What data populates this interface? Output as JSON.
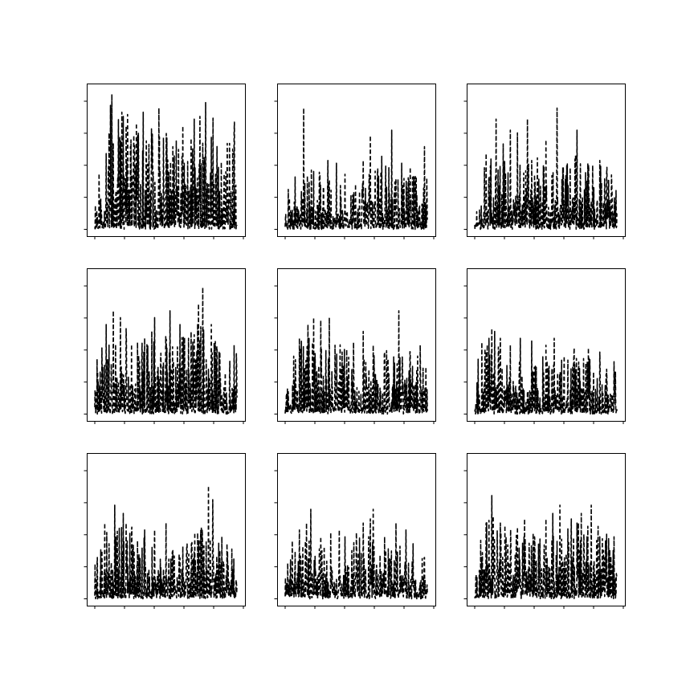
{
  "figure": {
    "rows": 3,
    "cols": 3,
    "background": "#ffffff",
    "line_color": "#000000",
    "line_style": "dashed"
  },
  "chart_data": [
    {
      "type": "line",
      "panel": "r1c1",
      "points": 500,
      "seed": 11,
      "envelope": [
        0.45,
        0.6,
        0.95,
        0.8,
        0.7,
        0.85,
        0.6,
        0.75,
        0.65,
        0.95,
        0.55,
        0.85
      ],
      "spikes": [
        [
          0.08,
          0.55
        ],
        [
          0.1,
          0.7
        ],
        [
          0.11,
          0.9
        ],
        [
          0.12,
          0.98
        ],
        [
          0.19,
          0.85
        ],
        [
          0.2,
          0.82
        ],
        [
          0.22,
          0.75
        ],
        [
          0.25,
          0.6
        ],
        [
          0.28,
          0.62
        ],
        [
          0.3,
          0.68
        ],
        [
          0.34,
          0.85
        ],
        [
          0.4,
          0.55
        ],
        [
          0.45,
          0.88
        ],
        [
          0.5,
          0.4
        ],
        [
          0.55,
          0.6
        ],
        [
          0.59,
          0.58
        ],
        [
          0.62,
          0.75
        ],
        [
          0.7,
          0.8
        ],
        [
          0.74,
          0.82
        ],
        [
          0.78,
          0.92
        ],
        [
          0.85,
          0.4
        ],
        [
          0.87,
          0.45
        ],
        [
          0.93,
          0.38
        ],
        [
          0.98,
          0.7
        ]
      ]
    },
    {
      "type": "line",
      "panel": "r1c2",
      "points": 500,
      "seed": 23,
      "envelope": [
        0.3,
        0.35,
        0.45,
        0.4,
        0.35,
        0.3,
        0.45,
        0.5,
        0.45,
        0.4,
        0.4,
        0.45
      ],
      "spikes": [
        [
          0.07,
          0.38
        ],
        [
          0.13,
          0.88
        ],
        [
          0.2,
          0.42
        ],
        [
          0.3,
          0.5
        ],
        [
          0.36,
          0.48
        ],
        [
          0.42,
          0.4
        ],
        [
          0.55,
          0.5
        ],
        [
          0.6,
          0.68
        ],
        [
          0.68,
          0.53
        ],
        [
          0.75,
          0.72
        ],
        [
          0.82,
          0.48
        ],
        [
          0.88,
          0.45
        ],
        [
          0.98,
          0.6
        ]
      ]
    },
    {
      "type": "line",
      "panel": "r1c3",
      "points": 500,
      "seed": 37,
      "envelope": [
        0.35,
        0.5,
        0.55,
        0.45,
        0.5,
        0.55,
        0.45,
        0.5,
        0.6,
        0.5,
        0.45,
        0.4
      ],
      "spikes": [
        [
          0.08,
          0.55
        ],
        [
          0.1,
          0.38
        ],
        [
          0.15,
          0.8
        ],
        [
          0.2,
          0.62
        ],
        [
          0.25,
          0.72
        ],
        [
          0.3,
          0.7
        ],
        [
          0.37,
          0.8
        ],
        [
          0.4,
          0.5
        ],
        [
          0.5,
          0.65
        ],
        [
          0.58,
          0.88
        ],
        [
          0.62,
          0.45
        ],
        [
          0.72,
          0.72
        ],
        [
          0.8,
          0.45
        ],
        [
          0.88,
          0.5
        ],
        [
          0.93,
          0.45
        ]
      ]
    },
    {
      "type": "line",
      "panel": "r2c1",
      "points": 500,
      "seed": 41,
      "envelope": [
        0.4,
        0.5,
        0.6,
        0.5,
        0.55,
        0.65,
        0.5,
        0.6,
        0.7,
        0.55,
        0.5,
        0.45
      ],
      "spikes": [
        [
          0.05,
          0.48
        ],
        [
          0.08,
          0.65
        ],
        [
          0.13,
          0.75
        ],
        [
          0.18,
          0.7
        ],
        [
          0.22,
          0.62
        ],
        [
          0.3,
          0.52
        ],
        [
          0.35,
          0.55
        ],
        [
          0.4,
          0.6
        ],
        [
          0.42,
          0.7
        ],
        [
          0.5,
          0.5
        ],
        [
          0.53,
          0.75
        ],
        [
          0.6,
          0.65
        ],
        [
          0.66,
          0.55
        ],
        [
          0.73,
          0.8
        ],
        [
          0.76,
          0.92
        ],
        [
          0.82,
          0.65
        ],
        [
          0.88,
          0.45
        ],
        [
          0.98,
          0.5
        ]
      ]
    },
    {
      "type": "line",
      "panel": "r2c2",
      "points": 500,
      "seed": 53,
      "envelope": [
        0.45,
        0.6,
        0.55,
        0.5,
        0.5,
        0.55,
        0.45,
        0.5,
        0.5,
        0.55,
        0.5,
        0.45
      ],
      "spikes": [
        [
          0.06,
          0.42
        ],
        [
          0.1,
          0.55
        ],
        [
          0.16,
          0.65
        ],
        [
          0.2,
          0.7
        ],
        [
          0.25,
          0.68
        ],
        [
          0.31,
          0.7
        ],
        [
          0.35,
          0.5
        ],
        [
          0.4,
          0.45
        ],
        [
          0.48,
          0.52
        ],
        [
          0.55,
          0.6
        ],
        [
          0.62,
          0.5
        ],
        [
          0.7,
          0.45
        ],
        [
          0.8,
          0.75
        ],
        [
          0.88,
          0.45
        ],
        [
          0.95,
          0.5
        ]
      ]
    },
    {
      "type": "line",
      "panel": "r2c3",
      "points": 500,
      "seed": 67,
      "envelope": [
        0.4,
        0.55,
        0.5,
        0.45,
        0.4,
        0.45,
        0.4,
        0.4,
        0.45,
        0.4,
        0.35,
        0.35
      ],
      "spikes": [
        [
          0.05,
          0.52
        ],
        [
          0.1,
          0.55
        ],
        [
          0.12,
          0.62
        ],
        [
          0.14,
          0.6
        ],
        [
          0.18,
          0.55
        ],
        [
          0.25,
          0.5
        ],
        [
          0.32,
          0.55
        ],
        [
          0.4,
          0.53
        ],
        [
          0.5,
          0.5
        ],
        [
          0.56,
          0.55
        ],
        [
          0.63,
          0.42
        ],
        [
          0.7,
          0.48
        ],
        [
          0.8,
          0.48
        ],
        [
          0.88,
          0.45
        ],
        [
          0.98,
          0.38
        ]
      ]
    },
    {
      "type": "line",
      "panel": "r3c1",
      "points": 500,
      "seed": 79,
      "envelope": [
        0.35,
        0.5,
        0.55,
        0.5,
        0.45,
        0.4,
        0.35,
        0.45,
        0.5,
        0.55,
        0.45,
        0.4
      ],
      "spikes": [
        [
          0.05,
          0.35
        ],
        [
          0.07,
          0.55
        ],
        [
          0.1,
          0.4
        ],
        [
          0.14,
          0.68
        ],
        [
          0.2,
          0.62
        ],
        [
          0.22,
          0.55
        ],
        [
          0.26,
          0.52
        ],
        [
          0.3,
          0.42
        ],
        [
          0.35,
          0.5
        ],
        [
          0.42,
          0.5
        ],
        [
          0.5,
          0.55
        ],
        [
          0.55,
          0.35
        ],
        [
          0.62,
          0.38
        ],
        [
          0.68,
          0.4
        ],
        [
          0.75,
          0.52
        ],
        [
          0.8,
          0.82
        ],
        [
          0.83,
          0.72
        ],
        [
          0.88,
          0.35
        ],
        [
          0.93,
          0.4
        ]
      ]
    },
    {
      "type": "line",
      "panel": "r3c2",
      "points": 500,
      "seed": 89,
      "envelope": [
        0.35,
        0.45,
        0.45,
        0.4,
        0.35,
        0.4,
        0.5,
        0.45,
        0.4,
        0.4,
        0.35,
        0.3
      ],
      "spikes": [
        [
          0.05,
          0.42
        ],
        [
          0.1,
          0.5
        ],
        [
          0.15,
          0.55
        ],
        [
          0.18,
          0.65
        ],
        [
          0.25,
          0.45
        ],
        [
          0.32,
          0.48
        ],
        [
          0.38,
          0.5
        ],
        [
          0.42,
          0.45
        ],
        [
          0.5,
          0.48
        ],
        [
          0.55,
          0.55
        ],
        [
          0.6,
          0.58
        ],
        [
          0.62,
          0.65
        ],
        [
          0.7,
          0.45
        ],
        [
          0.78,
          0.55
        ],
        [
          0.85,
          0.5
        ],
        [
          0.9,
          0.4
        ],
        [
          0.98,
          0.3
        ]
      ]
    },
    {
      "type": "line",
      "panel": "r3c3",
      "points": 500,
      "seed": 97,
      "envelope": [
        0.4,
        0.6,
        0.55,
        0.5,
        0.45,
        0.5,
        0.55,
        0.5,
        0.55,
        0.6,
        0.5,
        0.45
      ],
      "spikes": [
        [
          0.05,
          0.3
        ],
        [
          0.08,
          0.55
        ],
        [
          0.12,
          0.75
        ],
        [
          0.13,
          0.6
        ],
        [
          0.18,
          0.55
        ],
        [
          0.22,
          0.45
        ],
        [
          0.3,
          0.52
        ],
        [
          0.35,
          0.58
        ],
        [
          0.42,
          0.45
        ],
        [
          0.5,
          0.58
        ],
        [
          0.55,
          0.62
        ],
        [
          0.6,
          0.68
        ],
        [
          0.68,
          0.58
        ],
        [
          0.72,
          0.55
        ],
        [
          0.75,
          0.62
        ],
        [
          0.82,
          0.68
        ],
        [
          0.88,
          0.45
        ],
        [
          0.92,
          0.42
        ],
        [
          0.98,
          0.45
        ]
      ]
    }
  ]
}
